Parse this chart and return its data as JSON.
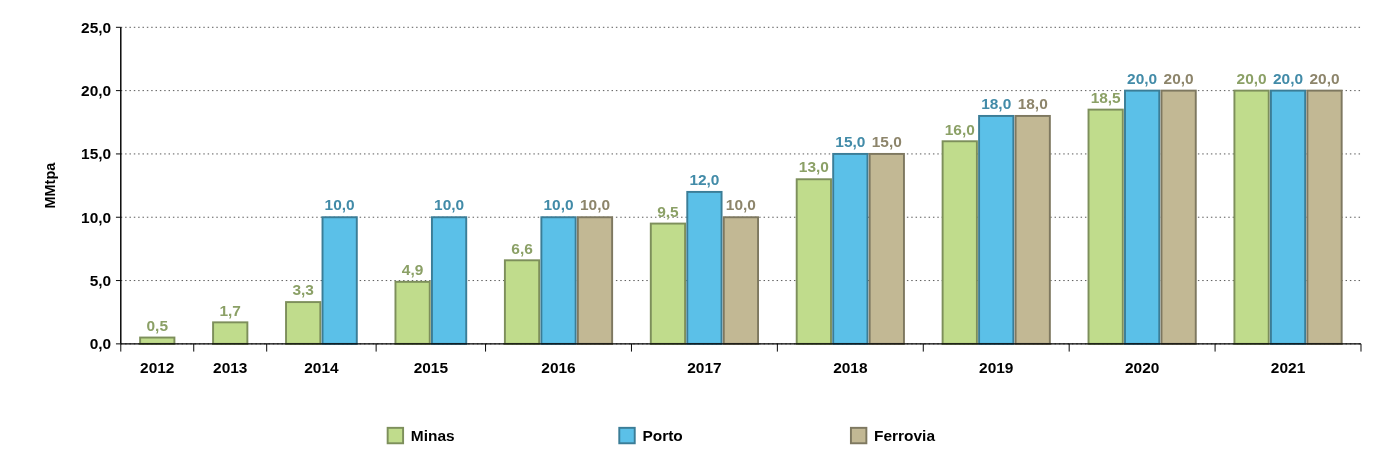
{
  "chart_data": {
    "type": "bar",
    "ylabel": "MMtpa",
    "categories": [
      "2012",
      "2013",
      "2014",
      "2015",
      "2016",
      "2017",
      "2018",
      "2019",
      "2020",
      "2021"
    ],
    "ylim": [
      0,
      25
    ],
    "yticks": [
      {
        "value": 0,
        "label": "0,0"
      },
      {
        "value": 5,
        "label": "5,0"
      },
      {
        "value": 10,
        "label": "10,0"
      },
      {
        "value": 15,
        "label": "15,0"
      },
      {
        "value": 20,
        "label": "20,0"
      },
      {
        "value": 25,
        "label": "25,0"
      }
    ],
    "grid": "y",
    "legend": "bottom",
    "series": [
      {
        "name": "Minas",
        "color": "#c0dc8c",
        "values": [
          0.5,
          1.7,
          3.3,
          4.9,
          6.6,
          9.5,
          13,
          16,
          18.5,
          20
        ],
        "value_labels": [
          "0,5",
          "1,7",
          "3,3",
          "4,9",
          "6,6",
          "9,5",
          "13,0",
          "16,0",
          "18,5",
          "20,0"
        ]
      },
      {
        "name": "Porto",
        "color": "#5bc0e8",
        "values": [
          null,
          null,
          10,
          10,
          10,
          12,
          15,
          18,
          20,
          20
        ],
        "value_labels": [
          null,
          null,
          "10,0",
          "10,0",
          "10,0",
          "12,0",
          "15,0",
          "18,0",
          "20,0",
          "20,0"
        ]
      },
      {
        "name": "Ferrovia",
        "color": "#c2b894",
        "values": [
          null,
          null,
          null,
          null,
          10,
          10,
          15,
          18,
          20,
          20
        ],
        "value_labels": [
          null,
          null,
          null,
          null,
          "10,0",
          "10,0",
          "15,0",
          "18,0",
          "20,0",
          "20,0"
        ]
      }
    ]
  }
}
